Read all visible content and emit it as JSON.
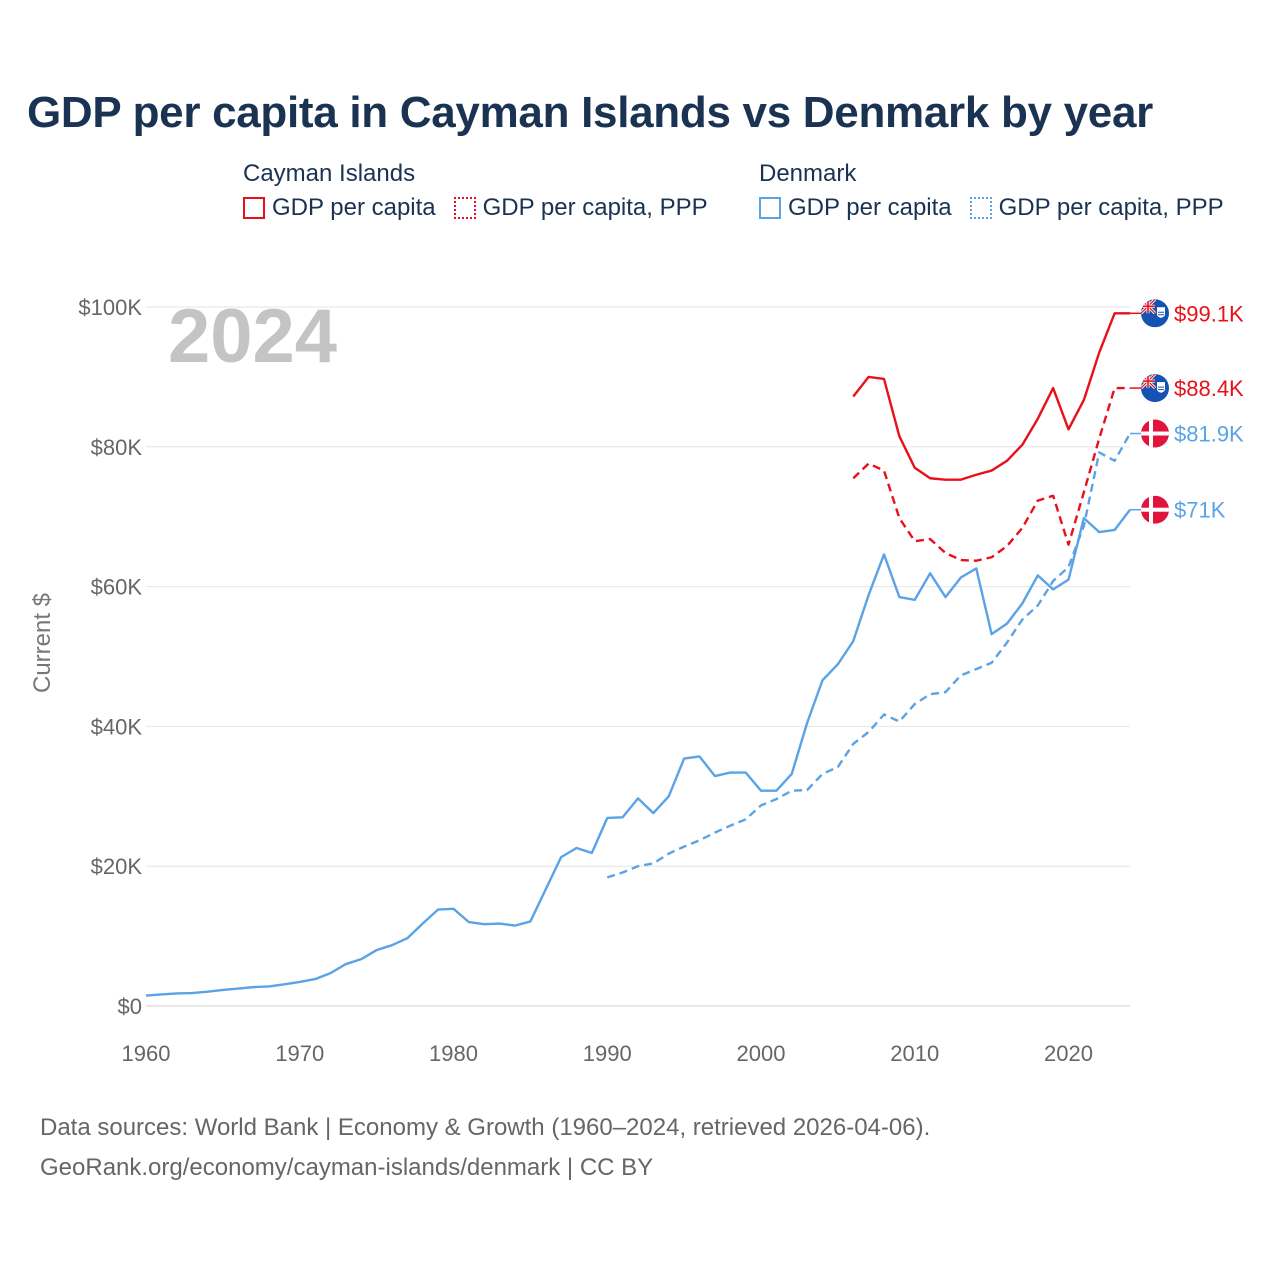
{
  "title": "GDP per capita in Cayman Islands vs Denmark by year",
  "legend": {
    "groups": [
      {
        "name": "Cayman Islands",
        "color": "#e8101a",
        "items": [
          {
            "label": "GDP per capita",
            "style": "solid"
          },
          {
            "label": "GDP per capita, PPP",
            "style": "dotted"
          }
        ]
      },
      {
        "name": "Denmark",
        "color": "#5aa3e6",
        "items": [
          {
            "label": "GDP per capita",
            "style": "solid"
          },
          {
            "label": "GDP per capita, PPP",
            "style": "dotted"
          }
        ]
      }
    ]
  },
  "footer": {
    "line1": "Data sources: World Bank | Economy & Growth (1960–2024, retrieved 2026-04-06).",
    "line2": "GeoRank.org/economy/cayman-islands/denmark | CC BY"
  },
  "chart_data": {
    "type": "line",
    "title": "GDP per capita in Cayman Islands vs Denmark by year",
    "xlabel": "",
    "ylabel": "Current $",
    "year_label": "2024",
    "xlim": [
      1960,
      2024
    ],
    "ylim": [
      0,
      100000
    ],
    "x_ticks": [
      1960,
      1970,
      1980,
      1990,
      2000,
      2010,
      2020
    ],
    "y_ticks": [
      {
        "value": 0,
        "label": "$0"
      },
      {
        "value": 20000,
        "label": "$20K"
      },
      {
        "value": 40000,
        "label": "$40K"
      },
      {
        "value": 60000,
        "label": "$60K"
      },
      {
        "value": 80000,
        "label": "$80K"
      },
      {
        "value": 100000,
        "label": "$100K"
      }
    ],
    "grid": true,
    "series": [
      {
        "name": "Cayman Islands GDP per capita",
        "color": "#e8101a",
        "dash": "solid",
        "flag": "cayman",
        "end_label": "$99.1K",
        "x": [
          2006,
          2007,
          2008,
          2009,
          2010,
          2011,
          2012,
          2013,
          2014,
          2015,
          2016,
          2017,
          2018,
          2019,
          2020,
          2021,
          2022,
          2023,
          2024
        ],
        "values": [
          87200,
          90000,
          89700,
          81500,
          77000,
          75500,
          75300,
          75300,
          76000,
          76600,
          78000,
          80300,
          84000,
          88400,
          82500,
          86700,
          93500,
          99100,
          99100
        ]
      },
      {
        "name": "Cayman Islands GDP per capita, PPP",
        "color": "#e8101a",
        "dash": "dashed",
        "flag": "cayman",
        "end_label": "$88.4K",
        "x": [
          2006,
          2007,
          2008,
          2009,
          2010,
          2011,
          2012,
          2013,
          2014,
          2015,
          2016,
          2017,
          2018,
          2019,
          2020,
          2021,
          2022,
          2023,
          2024
        ],
        "values": [
          75500,
          77600,
          76600,
          69800,
          66500,
          66800,
          64800,
          63800,
          63700,
          64200,
          65800,
          68400,
          72300,
          73000,
          66000,
          73500,
          81200,
          88400,
          88400
        ]
      },
      {
        "name": "Denmark GDP per capita",
        "color": "#5aa3e6",
        "dash": "solid",
        "flag": "denmark",
        "end_label": "$71K",
        "x": [
          1960,
          1961,
          1962,
          1963,
          1964,
          1965,
          1966,
          1967,
          1968,
          1969,
          1970,
          1971,
          1972,
          1973,
          1974,
          1975,
          1976,
          1977,
          1978,
          1979,
          1980,
          1981,
          1982,
          1983,
          1984,
          1985,
          1986,
          1987,
          1988,
          1989,
          1990,
          1991,
          1992,
          1993,
          1994,
          1995,
          1996,
          1997,
          1998,
          1999,
          2000,
          2001,
          2002,
          2003,
          2004,
          2005,
          2006,
          2007,
          2008,
          2009,
          2010,
          2011,
          2012,
          2013,
          2014,
          2015,
          2016,
          2017,
          2018,
          2019,
          2020,
          2021,
          2022,
          2023,
          2024
        ],
        "values": [
          1500,
          1650,
          1800,
          1850,
          2050,
          2300,
          2500,
          2700,
          2800,
          3100,
          3450,
          3850,
          4700,
          6000,
          6700,
          8000,
          8700,
          9700,
          11800,
          13800,
          13900,
          12000,
          11700,
          11800,
          11500,
          12100,
          16700,
          21300,
          22600,
          21900,
          26900,
          27000,
          29700,
          27600,
          30000,
          35400,
          35700,
          32900,
          33400,
          33400,
          30800,
          30800,
          33200,
          40500,
          46600,
          48900,
          52200,
          58800,
          64600,
          58500,
          58100,
          61900,
          58500,
          61300,
          62600,
          53200,
          54700,
          57600,
          61600,
          59600,
          61000,
          69800,
          67800,
          68100,
          71000
        ]
      },
      {
        "name": "Denmark GDP per capita, PPP",
        "color": "#5aa3e6",
        "dash": "dashed",
        "flag": "denmark",
        "end_label": "$81.9K",
        "x": [
          1990,
          1991,
          1992,
          1993,
          1994,
          1995,
          1996,
          1997,
          1998,
          1999,
          2000,
          2001,
          2002,
          2003,
          2004,
          2005,
          2006,
          2007,
          2008,
          2009,
          2010,
          2011,
          2012,
          2013,
          2014,
          2015,
          2016,
          2017,
          2018,
          2019,
          2020,
          2021,
          2022,
          2023,
          2024
        ],
        "values": [
          18400,
          19100,
          20000,
          20400,
          21800,
          22800,
          23700,
          24800,
          25800,
          26700,
          28700,
          29600,
          30800,
          30900,
          33200,
          34200,
          37500,
          39200,
          41700,
          40700,
          43200,
          44600,
          44900,
          47300,
          48200,
          49100,
          52000,
          55300,
          57300,
          60800,
          62800,
          68700,
          79200,
          78000,
          81900
        ]
      }
    ]
  }
}
